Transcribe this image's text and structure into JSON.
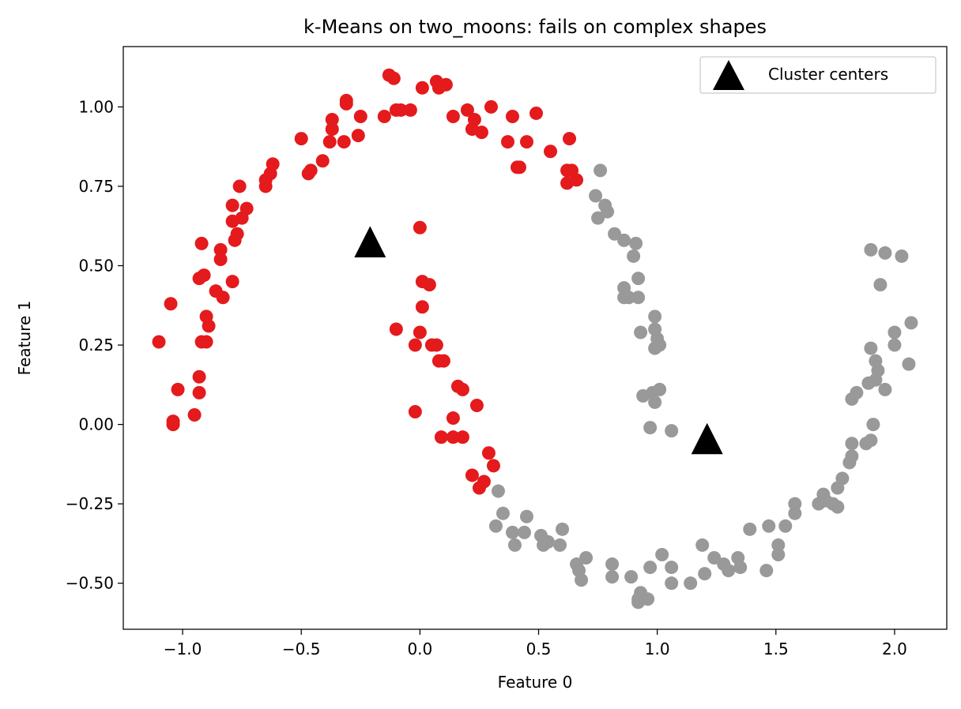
{
  "chart_data": {
    "type": "scatter",
    "title": "k-Means on two_moons: fails on complex shapes",
    "xlabel": "Feature 0",
    "ylabel": "Feature 1",
    "xlim": [
      -1.25,
      2.22
    ],
    "ylim": [
      -0.645,
      1.19
    ],
    "x_ticks": [
      -1.0,
      -0.5,
      0.0,
      0.5,
      1.0,
      1.5,
      2.0
    ],
    "x_tick_labels": [
      "−1.0",
      "−0.5",
      "0.0",
      "0.5",
      "1.0",
      "1.5",
      "2.0"
    ],
    "y_ticks": [
      -0.5,
      -0.25,
      0.0,
      0.25,
      0.5,
      0.75,
      1.0
    ],
    "y_tick_labels": [
      "−0.50",
      "−0.25",
      "0.00",
      "0.25",
      "0.50",
      "0.75",
      "1.00"
    ],
    "grid": false,
    "legend_position": "top-right",
    "colors": {
      "cluster_0": "#e41a1c",
      "cluster_1": "#999999",
      "centers": "#000000"
    },
    "series": [
      {
        "cluster": 0,
        "color": "#e41a1c",
        "points": [
          [
            -1.1,
            0.26
          ],
          [
            -1.05,
            0.38
          ],
          [
            -1.02,
            0.11
          ],
          [
            -1.04,
            0.01
          ],
          [
            -1.04,
            0.0
          ],
          [
            -0.95,
            0.03
          ],
          [
            -0.93,
            0.1
          ],
          [
            -0.93,
            0.15
          ],
          [
            -0.92,
            0.26
          ],
          [
            -0.9,
            0.26
          ],
          [
            -0.89,
            0.31
          ],
          [
            -0.9,
            0.34
          ],
          [
            -0.86,
            0.42
          ],
          [
            -0.83,
            0.4
          ],
          [
            -0.93,
            0.46
          ],
          [
            -0.91,
            0.47
          ],
          [
            -0.92,
            0.57
          ],
          [
            -0.84,
            0.52
          ],
          [
            -0.84,
            0.55
          ],
          [
            -0.79,
            0.45
          ],
          [
            -0.78,
            0.58
          ],
          [
            -0.77,
            0.6
          ],
          [
            -0.79,
            0.64
          ],
          [
            -0.79,
            0.69
          ],
          [
            -0.75,
            0.65
          ],
          [
            -0.73,
            0.68
          ],
          [
            -0.76,
            0.75
          ],
          [
            -0.65,
            0.75
          ],
          [
            -0.65,
            0.77
          ],
          [
            -0.63,
            0.79
          ],
          [
            -0.62,
            0.82
          ],
          [
            -0.5,
            0.9
          ],
          [
            -0.47,
            0.79
          ],
          [
            -0.46,
            0.8
          ],
          [
            -0.41,
            0.83
          ],
          [
            -0.38,
            0.89
          ],
          [
            -0.37,
            0.93
          ],
          [
            -0.37,
            0.96
          ],
          [
            -0.32,
            0.89
          ],
          [
            -0.26,
            0.91
          ],
          [
            -0.31,
            1.01
          ],
          [
            -0.31,
            1.02
          ],
          [
            -0.25,
            0.97
          ],
          [
            -0.15,
            0.97
          ],
          [
            -0.13,
            1.1
          ],
          [
            -0.11,
            1.09
          ],
          [
            -0.1,
            0.99
          ],
          [
            -0.08,
            0.99
          ],
          [
            -0.04,
            0.99
          ],
          [
            0.01,
            1.06
          ],
          [
            0.07,
            1.08
          ],
          [
            0.08,
            1.06
          ],
          [
            0.11,
            1.07
          ],
          [
            0.14,
            0.97
          ],
          [
            0.2,
            0.99
          ],
          [
            0.22,
            0.93
          ],
          [
            0.23,
            0.96
          ],
          [
            0.26,
            0.92
          ],
          [
            0.3,
            1.0
          ],
          [
            0.37,
            0.89
          ],
          [
            0.39,
            0.97
          ],
          [
            0.41,
            0.81
          ],
          [
            0.42,
            0.81
          ],
          [
            0.45,
            0.89
          ],
          [
            0.49,
            0.98
          ],
          [
            0.55,
            0.86
          ],
          [
            0.62,
            0.8
          ],
          [
            0.63,
            0.9
          ],
          [
            0.62,
            0.76
          ],
          [
            0.64,
            0.8
          ],
          [
            0.66,
            0.77
          ],
          [
            0.0,
            0.62
          ],
          [
            0.01,
            0.45
          ],
          [
            0.04,
            0.44
          ],
          [
            0.01,
            0.37
          ],
          [
            -0.1,
            0.3
          ],
          [
            0.0,
            0.29
          ],
          [
            -0.02,
            0.25
          ],
          [
            0.05,
            0.25
          ],
          [
            0.07,
            0.25
          ],
          [
            0.08,
            0.2
          ],
          [
            0.1,
            0.2
          ],
          [
            0.16,
            0.12
          ],
          [
            0.18,
            0.11
          ],
          [
            0.14,
            0.02
          ],
          [
            0.24,
            0.06
          ],
          [
            -0.02,
            0.04
          ],
          [
            0.09,
            -0.04
          ],
          [
            0.14,
            -0.04
          ],
          [
            0.18,
            -0.04
          ],
          [
            0.29,
            -0.09
          ],
          [
            0.31,
            -0.13
          ],
          [
            0.22,
            -0.16
          ],
          [
            0.25,
            -0.2
          ],
          [
            0.27,
            -0.18
          ]
        ]
      },
      {
        "cluster": 1,
        "color": "#999999",
        "points": [
          [
            0.76,
            0.8
          ],
          [
            0.74,
            0.72
          ],
          [
            0.78,
            0.69
          ],
          [
            0.75,
            0.65
          ],
          [
            0.79,
            0.67
          ],
          [
            0.82,
            0.6
          ],
          [
            0.86,
            0.58
          ],
          [
            0.9,
            0.53
          ],
          [
            0.91,
            0.57
          ],
          [
            0.86,
            0.43
          ],
          [
            0.86,
            0.4
          ],
          [
            0.88,
            0.4
          ],
          [
            0.92,
            0.4
          ],
          [
            0.92,
            0.46
          ],
          [
            0.93,
            0.29
          ],
          [
            0.99,
            0.34
          ],
          [
            0.99,
            0.3
          ],
          [
            1.0,
            0.27
          ],
          [
            1.01,
            0.25
          ],
          [
            0.99,
            0.24
          ],
          [
            0.94,
            0.09
          ],
          [
            0.98,
            0.1
          ],
          [
            1.01,
            0.11
          ],
          [
            0.99,
            0.07
          ],
          [
            0.97,
            -0.01
          ],
          [
            1.06,
            -0.02
          ],
          [
            0.33,
            -0.21
          ],
          [
            0.35,
            -0.28
          ],
          [
            0.32,
            -0.32
          ],
          [
            0.39,
            -0.34
          ],
          [
            0.44,
            -0.34
          ],
          [
            0.45,
            -0.29
          ],
          [
            0.4,
            -0.38
          ],
          [
            0.51,
            -0.35
          ],
          [
            0.52,
            -0.38
          ],
          [
            0.54,
            -0.37
          ],
          [
            0.59,
            -0.38
          ],
          [
            0.6,
            -0.33
          ],
          [
            0.66,
            -0.44
          ],
          [
            0.67,
            -0.46
          ],
          [
            0.68,
            -0.49
          ],
          [
            0.7,
            -0.42
          ],
          [
            0.81,
            -0.44
          ],
          [
            0.81,
            -0.48
          ],
          [
            0.89,
            -0.48
          ],
          [
            0.92,
            -0.55
          ],
          [
            0.93,
            -0.53
          ],
          [
            0.96,
            -0.55
          ],
          [
            0.92,
            -0.56
          ],
          [
            0.97,
            -0.45
          ],
          [
            1.02,
            -0.41
          ],
          [
            1.06,
            -0.45
          ],
          [
            1.06,
            -0.5
          ],
          [
            1.14,
            -0.5
          ],
          [
            1.19,
            -0.38
          ],
          [
            1.2,
            -0.47
          ],
          [
            1.24,
            -0.42
          ],
          [
            1.28,
            -0.44
          ],
          [
            1.3,
            -0.46
          ],
          [
            1.34,
            -0.42
          ],
          [
            1.35,
            -0.45
          ],
          [
            1.39,
            -0.33
          ],
          [
            1.46,
            -0.46
          ],
          [
            1.47,
            -0.32
          ],
          [
            1.51,
            -0.41
          ],
          [
            1.51,
            -0.38
          ],
          [
            1.54,
            -0.32
          ],
          [
            1.58,
            -0.25
          ],
          [
            1.58,
            -0.28
          ],
          [
            1.68,
            -0.25
          ],
          [
            1.7,
            -0.22
          ],
          [
            1.71,
            -0.24
          ],
          [
            1.74,
            -0.25
          ],
          [
            1.76,
            -0.26
          ],
          [
            1.76,
            -0.2
          ],
          [
            1.78,
            -0.17
          ],
          [
            1.81,
            -0.12
          ],
          [
            1.82,
            -0.1
          ],
          [
            1.82,
            -0.06
          ],
          [
            1.88,
            -0.06
          ],
          [
            1.9,
            -0.05
          ],
          [
            1.91,
            0.0
          ],
          [
            1.82,
            0.08
          ],
          [
            1.84,
            0.1
          ],
          [
            1.89,
            0.13
          ],
          [
            1.92,
            0.14
          ],
          [
            1.93,
            0.17
          ],
          [
            1.96,
            0.11
          ],
          [
            1.9,
            0.24
          ],
          [
            1.92,
            0.2
          ],
          [
            2.0,
            0.25
          ],
          [
            2.0,
            0.29
          ],
          [
            2.06,
            0.19
          ],
          [
            2.07,
            0.32
          ],
          [
            1.94,
            0.44
          ],
          [
            1.9,
            0.55
          ],
          [
            1.96,
            0.54
          ],
          [
            2.03,
            0.53
          ]
        ]
      }
    ],
    "centers": {
      "name": "Cluster centers",
      "color": "#000000",
      "marker": "triangle",
      "points": [
        [
          -0.21,
          0.57
        ],
        [
          1.21,
          -0.05
        ]
      ]
    }
  }
}
